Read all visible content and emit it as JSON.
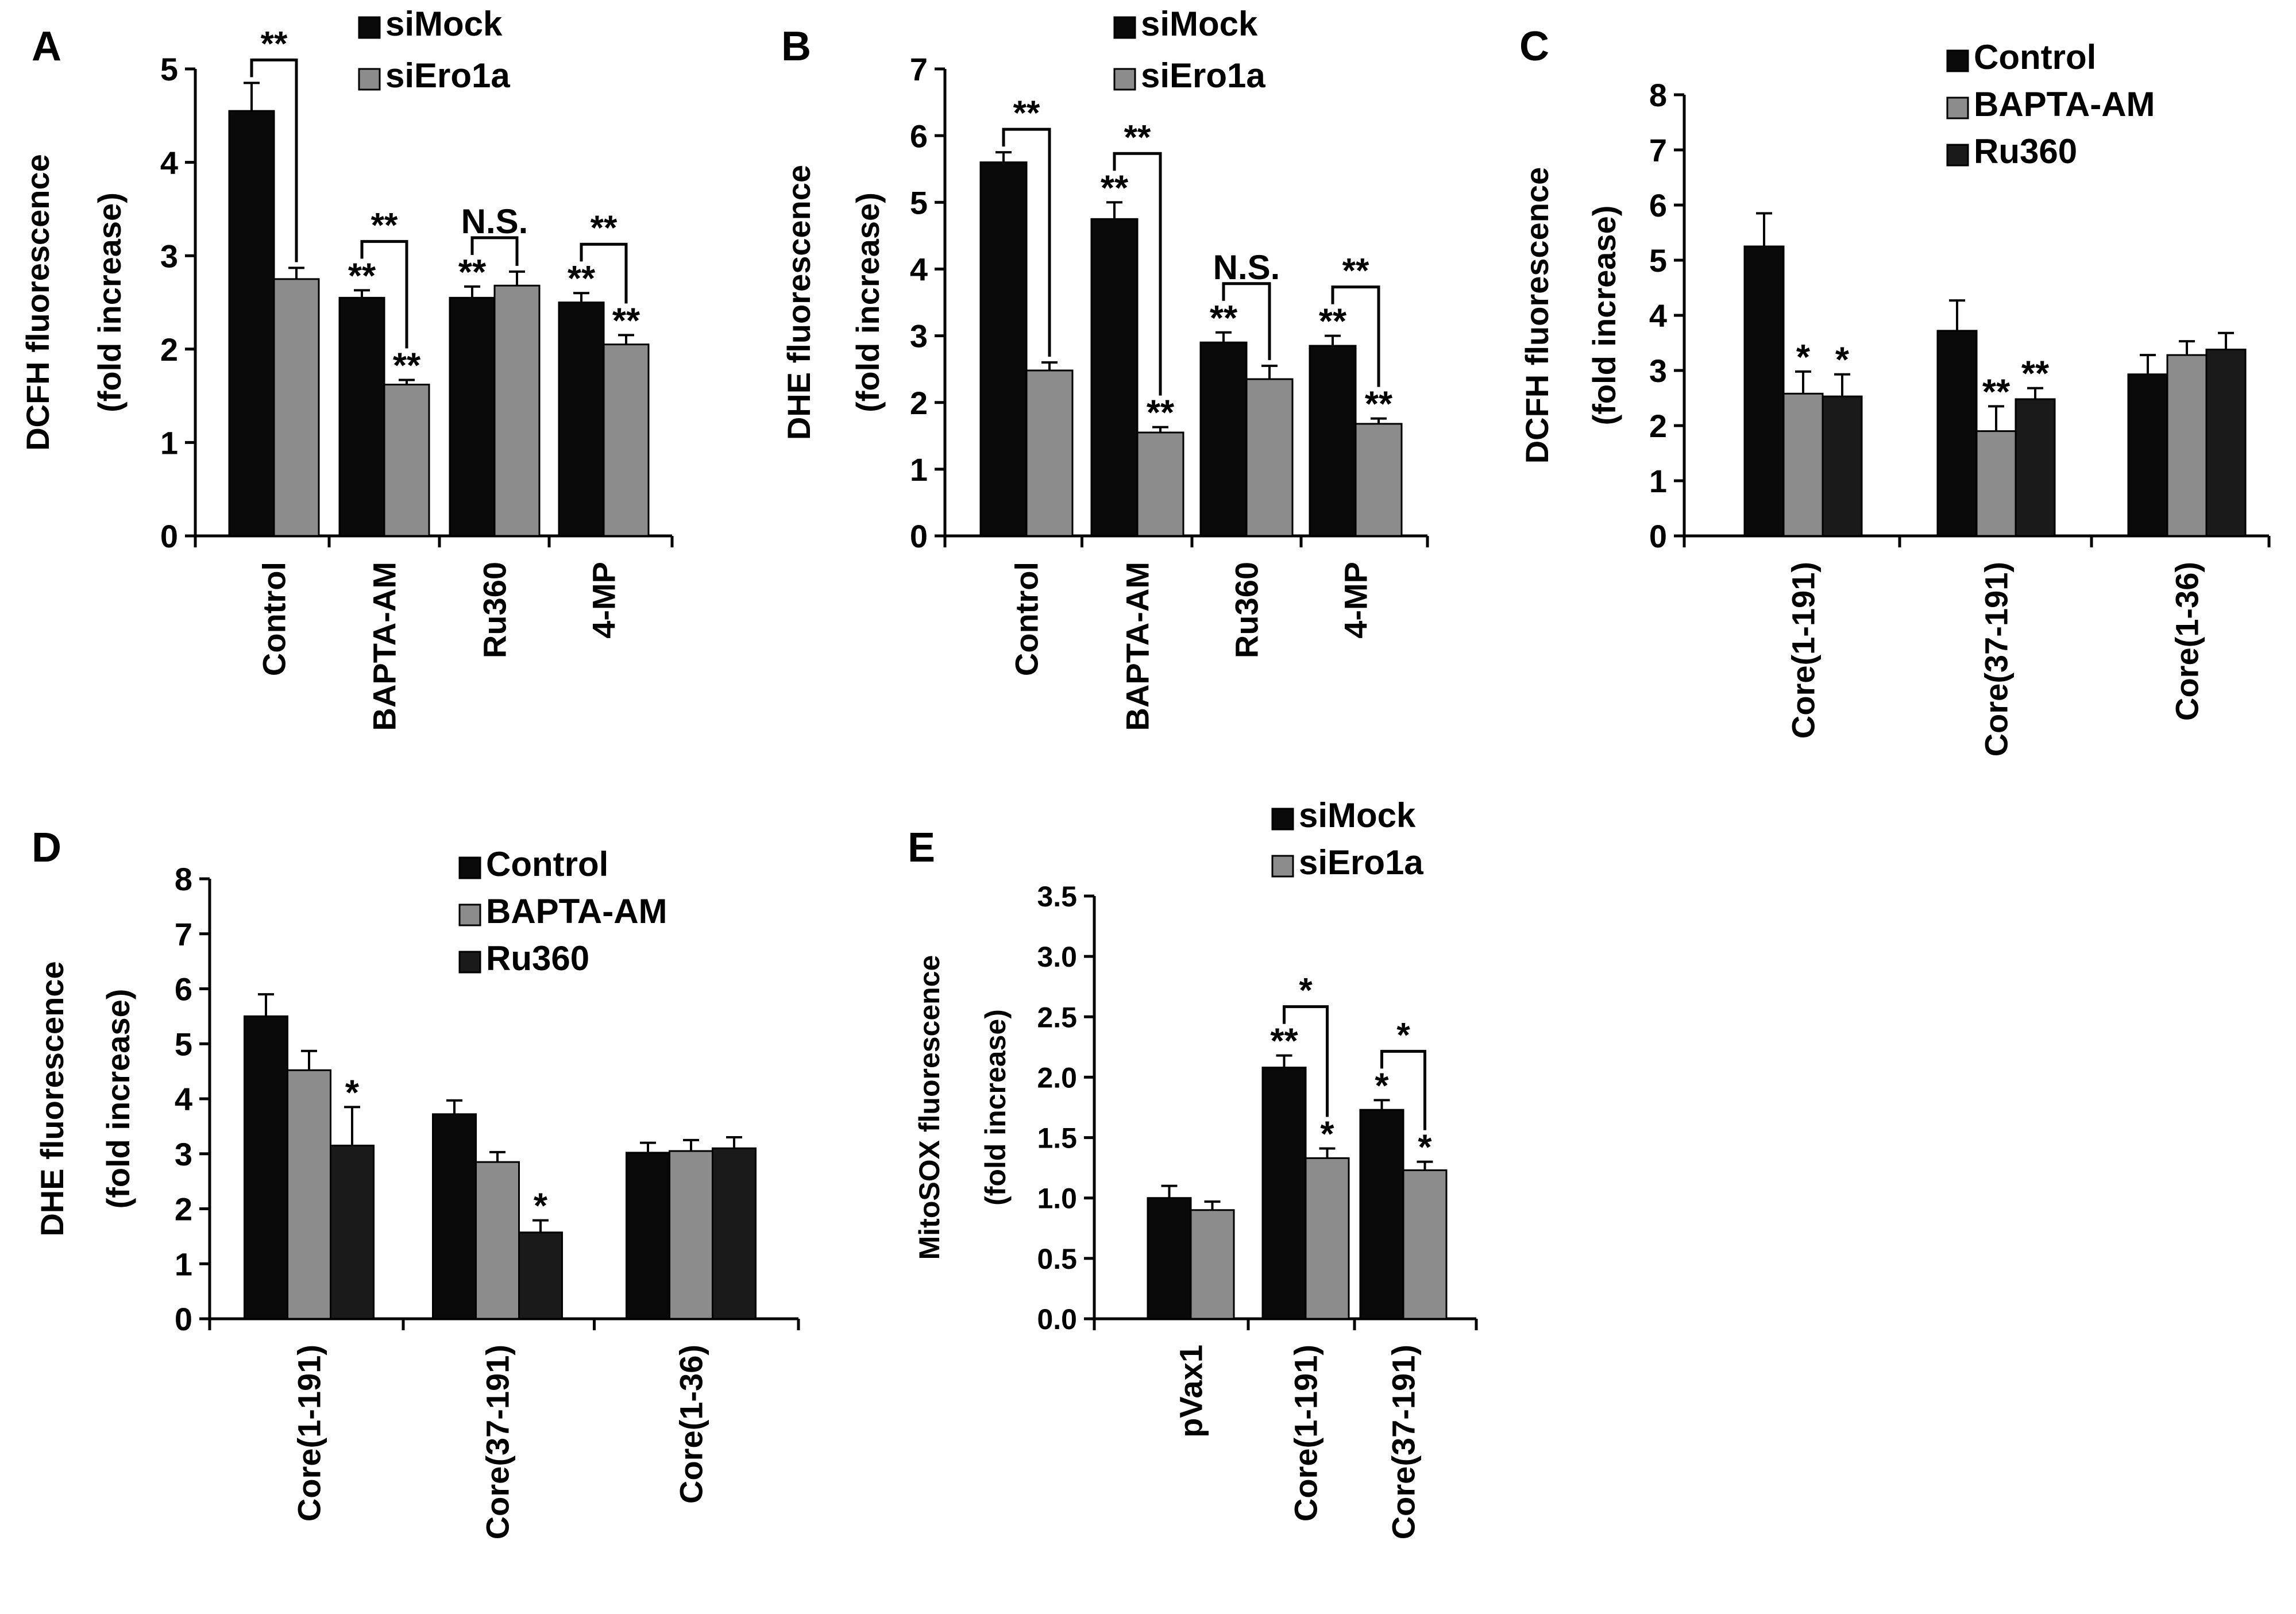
{
  "colors": {
    "black": "#0a0a0a",
    "gray": "#8c8c8c",
    "dark": "#1a1a1a"
  },
  "chart_data": [
    {
      "panel": "A",
      "type": "bar",
      "ylabel": [
        "DCFH fluorescence",
        "(fold increase)"
      ],
      "ylim": [
        0,
        5
      ],
      "yticks": [
        "0",
        "1",
        "2",
        "3",
        "4",
        "5"
      ],
      "categories": [
        "Control",
        "BAPTA-AM",
        "Ru360",
        "4-MP"
      ],
      "legend": [
        "siMock",
        "siEro1a"
      ],
      "series": [
        {
          "name": "siMock",
          "color": "#0a0a0a",
          "values": [
            4.55,
            2.55,
            2.55,
            2.5
          ],
          "errors": [
            0.3,
            0.08,
            0.12,
            0.1
          ],
          "marks": [
            "",
            "**",
            "**",
            "**"
          ]
        },
        {
          "name": "siEro1a",
          "color": "#8c8c8c",
          "values": [
            2.75,
            1.62,
            2.68,
            2.05
          ],
          "errors": [
            0.12,
            0.05,
            0.15,
            0.1
          ],
          "marks": [
            "",
            "**",
            "",
            "**"
          ]
        }
      ],
      "brackets": [
        {
          "category": 0,
          "label": "**"
        },
        {
          "category": 1,
          "label": "**"
        },
        {
          "category": 2,
          "label": "N.S."
        },
        {
          "category": 3,
          "label": "**"
        }
      ]
    },
    {
      "panel": "B",
      "type": "bar",
      "ylabel": [
        "DHE  fluorescence",
        "(fold increase)"
      ],
      "ylim": [
        0,
        7
      ],
      "yticks": [
        "0",
        "1",
        "2",
        "3",
        "4",
        "5",
        "6",
        "7"
      ],
      "categories": [
        "Control",
        "BAPTA-AM",
        "Ru360",
        "4-MP"
      ],
      "legend": [
        "siMock",
        "siEro1a"
      ],
      "series": [
        {
          "name": "siMock",
          "color": "#0a0a0a",
          "values": [
            5.6,
            4.75,
            2.9,
            2.85
          ],
          "errors": [
            0.15,
            0.25,
            0.15,
            0.15
          ],
          "marks": [
            "",
            "**",
            "**",
            "**"
          ]
        },
        {
          "name": "siEro1a",
          "color": "#8c8c8c",
          "values": [
            2.48,
            1.55,
            2.35,
            1.68
          ],
          "errors": [
            0.12,
            0.08,
            0.2,
            0.08
          ],
          "marks": [
            "",
            "**",
            "",
            "**"
          ]
        }
      ],
      "brackets": [
        {
          "category": 0,
          "label": "**"
        },
        {
          "category": 1,
          "label": "**"
        },
        {
          "category": 2,
          "label": "N.S."
        },
        {
          "category": 3,
          "label": "**"
        }
      ]
    },
    {
      "panel": "C",
      "type": "bar",
      "ylabel": [
        "DCFH fluorescence",
        "(fold increase)"
      ],
      "ylim": [
        0,
        8
      ],
      "yticks": [
        "0",
        "1",
        "2",
        "3",
        "4",
        "5",
        "6",
        "7",
        "8"
      ],
      "categories": [
        "Core(1-191)",
        "Core(37-191)",
        "Core(1-36)"
      ],
      "legend": [
        "Control",
        "BAPTA-AM",
        "Ru360"
      ],
      "series": [
        {
          "name": "Control",
          "color": "#0a0a0a",
          "values": [
            5.25,
            3.72,
            2.93
          ],
          "errors": [
            0.6,
            0.55,
            0.35
          ],
          "marks": [
            "",
            "",
            ""
          ]
        },
        {
          "name": "BAPTA-AM",
          "color": "#8c8c8c",
          "values": [
            2.58,
            1.9,
            3.28
          ],
          "errors": [
            0.4,
            0.45,
            0.25
          ],
          "marks": [
            "*",
            "**",
            ""
          ]
        },
        {
          "name": "Ru360",
          "color": "#1a1a1a",
          "values": [
            2.53,
            2.48,
            3.38
          ],
          "errors": [
            0.4,
            0.2,
            0.3
          ],
          "marks": [
            "*",
            "**",
            ""
          ]
        }
      ],
      "brackets": []
    },
    {
      "panel": "D",
      "type": "bar",
      "ylabel": [
        "DHE  fluorescence",
        "(fold increase)"
      ],
      "ylim": [
        0,
        8
      ],
      "yticks": [
        "0",
        "1",
        "2",
        "3",
        "4",
        "5",
        "6",
        "7",
        "8"
      ],
      "categories": [
        "Core(1-191)",
        "Core(37-191)",
        "Core(1-36)"
      ],
      "legend": [
        "Control",
        "BAPTA-AM",
        "Ru360"
      ],
      "series": [
        {
          "name": "Control",
          "color": "#0a0a0a",
          "values": [
            5.5,
            3.72,
            3.02
          ],
          "errors": [
            0.4,
            0.25,
            0.18
          ],
          "marks": [
            "",
            "",
            ""
          ]
        },
        {
          "name": "BAPTA-AM",
          "color": "#8c8c8c",
          "values": [
            4.52,
            2.85,
            3.05
          ],
          "errors": [
            0.35,
            0.18,
            0.2
          ],
          "marks": [
            "",
            "",
            ""
          ]
        },
        {
          "name": "Ru360",
          "color": "#1a1a1a",
          "values": [
            3.15,
            1.57,
            3.1
          ],
          "errors": [
            0.7,
            0.22,
            0.2
          ],
          "marks": [
            "*",
            "*",
            ""
          ]
        }
      ],
      "brackets": []
    },
    {
      "panel": "E",
      "type": "bar",
      "ylabel": [
        "MitoSOX fluorescence",
        "(fold increase)"
      ],
      "ylim": [
        0,
        3.5
      ],
      "yticks": [
        "0.0",
        "0.5",
        "1.0",
        "1.5",
        "2.0",
        "2.5",
        "3.0",
        "3.5"
      ],
      "categories": [
        "pVax1",
        "Core(1-191)",
        "Core(37-191)"
      ],
      "legend": [
        "siMock",
        "siEro1a"
      ],
      "series": [
        {
          "name": "siMock",
          "color": "#0a0a0a",
          "values": [
            1.0,
            2.08,
            1.73
          ],
          "errors": [
            0.1,
            0.1,
            0.08
          ],
          "marks": [
            "",
            "**",
            "*"
          ]
        },
        {
          "name": "siEro1a",
          "color": "#8c8c8c",
          "values": [
            0.9,
            1.33,
            1.23
          ],
          "errors": [
            0.07,
            0.08,
            0.07
          ],
          "marks": [
            "",
            "*",
            "*"
          ]
        }
      ],
      "brackets": [
        {
          "category": 1,
          "label": "*"
        },
        {
          "category": 2,
          "label": "*"
        }
      ]
    }
  ]
}
